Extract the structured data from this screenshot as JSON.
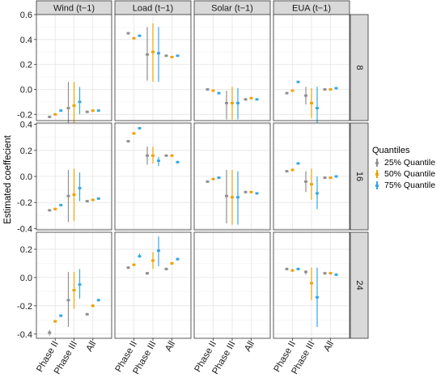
{
  "chart_data": {
    "type": "scatter",
    "subtype": "faceted point estimates with error bars",
    "ylabel": "Estimated coeffecient",
    "columns": [
      "Wind (t−1)",
      "Load (t−1)",
      "Solar (t−1)",
      "EUA (t−1)"
    ],
    "rows": [
      "8",
      "16",
      "24"
    ],
    "categories": [
      "Phase II",
      "Phase III",
      "All"
    ],
    "row_ylim": [
      [
        -0.25,
        0.6
      ],
      [
        -0.41,
        0.41
      ],
      [
        -0.43,
        0.32
      ]
    ],
    "row_yticks": [
      [
        -0.2,
        0.0,
        0.2,
        0.4,
        0.6
      ],
      [
        -0.4,
        -0.2,
        0.0,
        0.2,
        0.4
      ],
      [
        -0.4,
        -0.2,
        0.0,
        0.2
      ]
    ],
    "row_ytick_labels": [
      [
        "-0.2",
        "0.0",
        "0.2",
        "0.4",
        "0.6"
      ],
      [
        "-0.4",
        "-0.2",
        "0.0",
        "0.2",
        "0.4"
      ],
      [
        "-0.4",
        "-0.2",
        "0.0",
        "0.2"
      ]
    ],
    "grid": true,
    "legend": {
      "title": "Quantiles",
      "position": "right",
      "entries": [
        "25% Quantile",
        "50% Quantile",
        "75% Quantile"
      ],
      "colors": [
        "#909090",
        "#F0A000",
        "#35A7E8"
      ]
    },
    "panels": [
      {
        "row": "8",
        "col": "Wind (t−1)",
        "series": [
          {
            "quantile": "25% Quantile",
            "values": [
              -0.22,
              -0.15,
              -0.18
            ],
            "lower": [
              -0.23,
              -0.36,
              -0.19
            ],
            "upper": [
              -0.21,
              0.06,
              -0.17
            ]
          },
          {
            "quantile": "50% Quantile",
            "values": [
              -0.2,
              -0.13,
              -0.17
            ],
            "lower": [
              -0.21,
              -0.33,
              -0.18
            ],
            "upper": [
              -0.19,
              0.06,
              -0.16
            ]
          },
          {
            "quantile": "75% Quantile",
            "values": [
              -0.17,
              -0.1,
              -0.17
            ],
            "lower": [
              -0.18,
              -0.2,
              -0.18
            ],
            "upper": [
              -0.16,
              0.02,
              -0.16
            ]
          }
        ]
      },
      {
        "row": "8",
        "col": "Load (t−1)",
        "series": [
          {
            "quantile": "25% Quantile",
            "values": [
              0.45,
              0.28,
              0.27
            ],
            "lower": [
              0.44,
              0.07,
              0.26
            ],
            "upper": [
              0.46,
              0.5,
              0.28
            ]
          },
          {
            "quantile": "50% Quantile",
            "values": [
              0.41,
              0.3,
              0.26
            ],
            "lower": [
              0.4,
              0.06,
              0.25
            ],
            "upper": [
              0.42,
              0.53,
              0.27
            ]
          },
          {
            "quantile": "75% Quantile",
            "values": [
              0.43,
              0.29,
              0.27
            ],
            "lower": [
              0.42,
              0.06,
              0.26
            ],
            "upper": [
              0.44,
              0.5,
              0.28
            ]
          }
        ]
      },
      {
        "row": "8",
        "col": "Solar (t−1)",
        "series": [
          {
            "quantile": "25% Quantile",
            "values": [
              0.0,
              -0.11,
              -0.08
            ],
            "lower": [
              -0.01,
              -0.24,
              -0.09
            ],
            "upper": [
              0.01,
              -0.01,
              -0.07
            ]
          },
          {
            "quantile": "50% Quantile",
            "values": [
              -0.01,
              -0.11,
              -0.07
            ],
            "lower": [
              -0.02,
              -0.24,
              -0.08
            ],
            "upper": [
              0.0,
              0.02,
              -0.06
            ]
          },
          {
            "quantile": "75% Quantile",
            "values": [
              -0.03,
              -0.11,
              -0.08
            ],
            "lower": [
              -0.04,
              -0.24,
              -0.09
            ],
            "upper": [
              -0.02,
              0.01,
              -0.07
            ]
          }
        ]
      },
      {
        "row": "8",
        "col": "EUA (t−1)",
        "series": [
          {
            "quantile": "25% Quantile",
            "values": [
              -0.03,
              -0.05,
              0.0
            ],
            "lower": [
              -0.04,
              -0.12,
              -0.01
            ],
            "upper": [
              -0.02,
              0.02,
              0.01
            ]
          },
          {
            "quantile": "50% Quantile",
            "values": [
              -0.01,
              -0.11,
              0.0
            ],
            "lower": [
              -0.02,
              -0.23,
              -0.01
            ],
            "upper": [
              0.0,
              0.01,
              0.01
            ]
          },
          {
            "quantile": "75% Quantile",
            "values": [
              0.06,
              -0.15,
              0.01
            ],
            "lower": [
              0.05,
              -0.33,
              0.0
            ],
            "upper": [
              0.07,
              0.02,
              0.02
            ]
          }
        ]
      },
      {
        "row": "16",
        "col": "Wind (t−1)",
        "series": [
          {
            "quantile": "25% Quantile",
            "values": [
              -0.26,
              -0.15,
              -0.19
            ],
            "lower": [
              -0.27,
              -0.35,
              -0.2
            ],
            "upper": [
              -0.25,
              0.05,
              -0.18
            ]
          },
          {
            "quantile": "50% Quantile",
            "values": [
              -0.25,
              -0.14,
              -0.18
            ],
            "lower": [
              -0.26,
              -0.34,
              -0.19
            ],
            "upper": [
              -0.24,
              0.06,
              -0.17
            ]
          },
          {
            "quantile": "75% Quantile",
            "values": [
              -0.22,
              -0.09,
              -0.17
            ],
            "lower": [
              -0.23,
              -0.19,
              -0.18
            ],
            "upper": [
              -0.21,
              0.03,
              -0.16
            ]
          }
        ]
      },
      {
        "row": "16",
        "col": "Load (t−1)",
        "series": [
          {
            "quantile": "25% Quantile",
            "values": [
              0.27,
              0.16,
              0.16
            ],
            "lower": [
              0.26,
              0.09,
              0.15
            ],
            "upper": [
              0.28,
              0.23,
              0.17
            ]
          },
          {
            "quantile": "50% Quantile",
            "values": [
              0.33,
              0.16,
              0.16
            ],
            "lower": [
              0.32,
              0.1,
              0.15
            ],
            "upper": [
              0.34,
              0.23,
              0.17
            ]
          },
          {
            "quantile": "75% Quantile",
            "values": [
              0.37,
              0.12,
              0.11
            ],
            "lower": [
              0.36,
              0.08,
              0.1
            ],
            "upper": [
              0.38,
              0.15,
              0.12
            ]
          }
        ]
      },
      {
        "row": "16",
        "col": "Solar (t−1)",
        "series": [
          {
            "quantile": "25% Quantile",
            "values": [
              -0.04,
              -0.15,
              -0.12
            ],
            "lower": [
              -0.05,
              -0.36,
              -0.13
            ],
            "upper": [
              -0.03,
              0.05,
              -0.11
            ]
          },
          {
            "quantile": "50% Quantile",
            "values": [
              -0.02,
              -0.16,
              -0.12
            ],
            "lower": [
              -0.03,
              -0.37,
              -0.13
            ],
            "upper": [
              -0.01,
              0.05,
              -0.11
            ]
          },
          {
            "quantile": "75% Quantile",
            "values": [
              -0.01,
              -0.16,
              -0.13
            ],
            "lower": [
              -0.02,
              -0.37,
              -0.14
            ],
            "upper": [
              0.0,
              0.04,
              -0.12
            ]
          }
        ]
      },
      {
        "row": "16",
        "col": "EUA (t−1)",
        "series": [
          {
            "quantile": "25% Quantile",
            "values": [
              0.04,
              -0.04,
              -0.01
            ],
            "lower": [
              0.03,
              -0.12,
              -0.02
            ],
            "upper": [
              0.05,
              0.04,
              0.0
            ]
          },
          {
            "quantile": "50% Quantile",
            "values": [
              0.05,
              -0.06,
              -0.01
            ],
            "lower": [
              0.04,
              -0.18,
              -0.02
            ],
            "upper": [
              0.06,
              0.06,
              0.0
            ]
          },
          {
            "quantile": "75% Quantile",
            "values": [
              0.1,
              -0.13,
              0.0
            ],
            "lower": [
              0.09,
              -0.25,
              -0.01
            ],
            "upper": [
              0.11,
              0.0,
              0.01
            ]
          }
        ]
      },
      {
        "row": "24",
        "col": "Wind (t−1)",
        "series": [
          {
            "quantile": "25% Quantile",
            "values": [
              -0.39,
              -0.16,
              -0.26
            ],
            "lower": [
              -0.41,
              -0.35,
              -0.27
            ],
            "upper": [
              -0.37,
              0.04,
              -0.25
            ]
          },
          {
            "quantile": "50% Quantile",
            "values": [
              -0.31,
              -0.09,
              -0.2
            ],
            "lower": [
              -0.32,
              -0.22,
              -0.21
            ],
            "upper": [
              -0.3,
              0.04,
              -0.19
            ]
          },
          {
            "quantile": "75% Quantile",
            "values": [
              -0.27,
              -0.05,
              -0.16
            ],
            "lower": [
              -0.28,
              -0.15,
              -0.17
            ],
            "upper": [
              -0.26,
              0.06,
              -0.15
            ]
          }
        ]
      },
      {
        "row": "24",
        "col": "Load (t−1)",
        "series": [
          {
            "quantile": "25% Quantile",
            "values": [
              0.07,
              0.03,
              0.06
            ],
            "lower": [
              0.06,
              0.02,
              0.05
            ],
            "upper": [
              0.08,
              0.04,
              0.07
            ]
          },
          {
            "quantile": "50% Quantile",
            "values": [
              0.09,
              0.12,
              0.1
            ],
            "lower": [
              0.08,
              0.06,
              0.09
            ],
            "upper": [
              0.1,
              0.18,
              0.11
            ]
          },
          {
            "quantile": "75% Quantile",
            "values": [
              0.15,
              0.19,
              0.13
            ],
            "lower": [
              0.14,
              0.08,
              0.12
            ],
            "upper": [
              0.17,
              0.29,
              0.14
            ]
          }
        ]
      },
      {
        "row": "24",
        "col": "Solar (t−1)",
        "series": []
      },
      {
        "row": "24",
        "col": "EUA (t−1)",
        "series": [
          {
            "quantile": "25% Quantile",
            "values": [
              0.06,
              0.04,
              0.03
            ],
            "lower": [
              0.05,
              0.02,
              0.02
            ],
            "upper": [
              0.07,
              0.05,
              0.04
            ]
          },
          {
            "quantile": "50% Quantile",
            "values": [
              0.05,
              -0.04,
              0.03
            ],
            "lower": [
              0.04,
              -0.16,
              0.02
            ],
            "upper": [
              0.06,
              0.07,
              0.04
            ]
          },
          {
            "quantile": "75% Quantile",
            "values": [
              0.06,
              -0.14,
              0.02
            ],
            "lower": [
              0.05,
              -0.35,
              0.01
            ],
            "upper": [
              0.07,
              0.07,
              0.03
            ]
          }
        ]
      }
    ]
  }
}
